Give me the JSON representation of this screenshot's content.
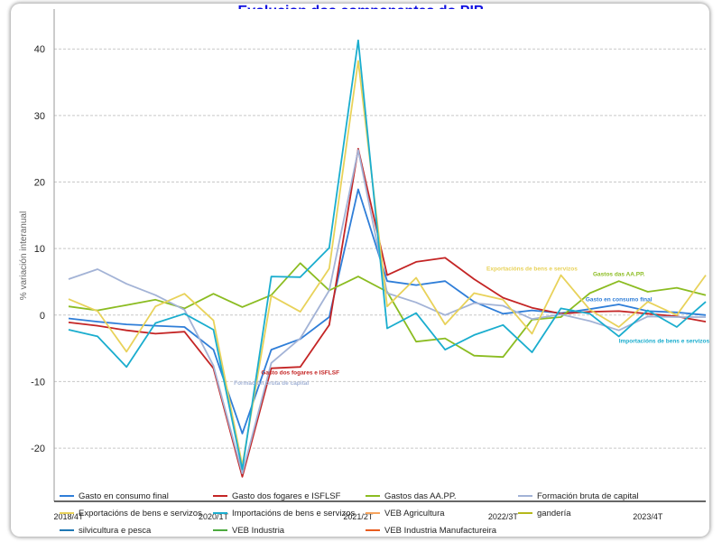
{
  "chart_data": {
    "type": "line",
    "title": "Evolucion dos componentes do PIB",
    "xlabel": "",
    "ylabel": "% variación interanual",
    "ylim": [
      -28,
      46
    ],
    "yticks": [
      -20,
      -10,
      0,
      10,
      20,
      30,
      40
    ],
    "grid": true,
    "x_tick_labels": [
      {
        "index": 0,
        "label": "2018/4T"
      },
      {
        "index": 5,
        "label": "2020/1T"
      },
      {
        "index": 10,
        "label": "2021/2T"
      },
      {
        "index": 15,
        "label": "2022/3T"
      },
      {
        "index": 20,
        "label": "2023/4T"
      }
    ],
    "series": [
      {
        "name": "Gasto en consumo final",
        "color": "#2f7ed8",
        "values": [
          -0.5,
          -1.0,
          -1.4,
          -1.6,
          -1.8,
          -5.2,
          -17.8,
          -5.2,
          -3.6,
          -0.3,
          18.9,
          5.1,
          4.5,
          5.1,
          2.0,
          0.2,
          0.7,
          0.3,
          0.9,
          1.6,
          0.6,
          0.4,
          0.0
        ]
      },
      {
        "name": "Gasto dos fogares e ISFLSF",
        "color": "#c42525",
        "values": [
          -1.1,
          -1.6,
          -2.3,
          -2.8,
          -2.5,
          -8.0,
          -24.3,
          -8.0,
          -7.8,
          -1.5,
          25.0,
          6.0,
          8.0,
          8.6,
          5.4,
          2.6,
          1.1,
          0.2,
          0.5,
          0.6,
          0.2,
          -0.2,
          -1.0
        ]
      },
      {
        "name": "Gastos das AA.PP.",
        "color": "#8bbc21",
        "values": [
          1.3,
          0.7,
          1.5,
          2.3,
          1.0,
          3.2,
          1.2,
          3.0,
          7.8,
          3.7,
          5.8,
          3.5,
          -4.0,
          -3.5,
          -6.1,
          -6.3,
          -0.7,
          -0.3,
          3.3,
          5.1,
          3.5,
          4.1,
          3.0
        ]
      },
      {
        "name": "Formación bruta de capital",
        "color": "#a3b3d6",
        "values": [
          5.4,
          6.9,
          4.7,
          3.0,
          0.8,
          -7.6,
          -23.8,
          -7.2,
          -3.5,
          3.7,
          24.8,
          3.3,
          1.9,
          0.0,
          1.8,
          1.4,
          -0.6,
          0.1,
          -0.9,
          -2.3,
          -0.2,
          -0.3,
          -0.3
        ]
      },
      {
        "name": "Exportacións de bens e servizos",
        "color": "#e8d25a",
        "values": [
          2.4,
          0.6,
          -5.5,
          1.3,
          3.2,
          -0.8,
          -22.6,
          2.9,
          0.5,
          7.0,
          38.2,
          1.3,
          5.6,
          -1.4,
          3.3,
          2.3,
          -2.8,
          6.0,
          0.8,
          -1.8,
          2.0,
          0.0,
          6.0
        ]
      },
      {
        "name": "Importacións de bens e servizos",
        "color": "#1aadce",
        "values": [
          -2.2,
          -3.2,
          -7.8,
          -1.2,
          0.2,
          -2.2,
          -23.2,
          5.8,
          5.7,
          10.1,
          41.3,
          -2.0,
          0.3,
          -5.2,
          -3.0,
          -1.5,
          -5.6,
          1.0,
          0.2,
          -3.2,
          0.7,
          -1.8,
          2.0
        ]
      },
      {
        "name": "VEB Agricultura",
        "color": "#f7a35c",
        "values": []
      },
      {
        "name": "gandería",
        "color": "#b5b81a",
        "values": []
      },
      {
        "name": "silvicultura e pesca",
        "color": "#1f78b4",
        "values": []
      },
      {
        "name": "VEB Industria",
        "color": "#4daa3f",
        "values": []
      },
      {
        "name": "VEB Industria Manufactureira",
        "color": "#e85c1f",
        "values": []
      }
    ],
    "annotations": [
      {
        "text": "Exportacións de bens e servizos",
        "series": 4,
        "index": 16,
        "value": 6.7,
        "color": "#e8d25a"
      },
      {
        "text": "Gastos das AA.PP.",
        "series": 2,
        "index": 19,
        "value": 5.9,
        "color": "#8bbc21"
      },
      {
        "text": "Gasto en consumo final",
        "series": 0,
        "index": 19,
        "value": 2.1,
        "color": "#2f7ed8"
      },
      {
        "text": "Importacións de bens e servizos",
        "series": 5,
        "index": 19,
        "value": -4.2,
        "color": "#1aadce"
      },
      {
        "text": "Gasto dos fogares e ISFLSF",
        "series": 1,
        "index": 8,
        "value": -8.9,
        "color": "#c42525"
      },
      {
        "text": "Formación bruta de capital",
        "series": 3,
        "index": 7,
        "value": -10.5,
        "color": "#a3b3d6"
      }
    ],
    "legend_position": "bottom"
  }
}
